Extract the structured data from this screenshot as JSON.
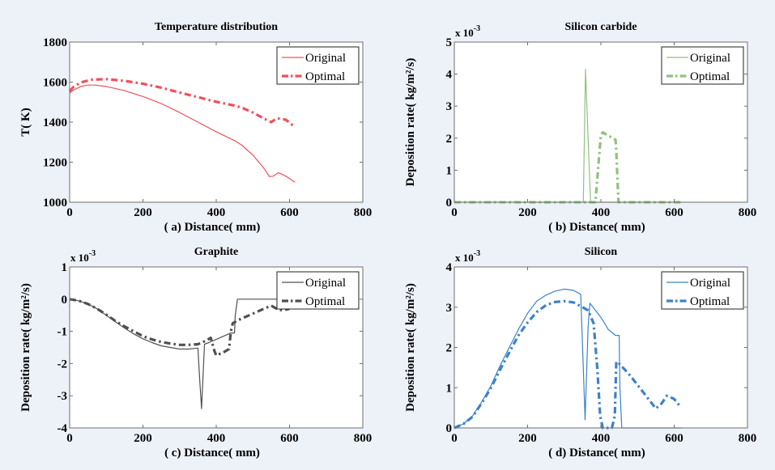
{
  "chart_data": [
    {
      "id": "a",
      "type": "line",
      "title": "Temperature distribution",
      "xlabel": "( a)  Distance(  mm)",
      "ylabel": "T(  K)",
      "xlim": [
        0,
        800
      ],
      "ylim": [
        1000,
        1800
      ],
      "xticks": [
        "0",
        "200",
        "400",
        "600",
        "800"
      ],
      "yticks": [
        "1000",
        "1200",
        "1400",
        "1600",
        "1800"
      ],
      "ytick_values": [
        1000,
        1200,
        1400,
        1600,
        1800
      ],
      "multiplier": "",
      "grid": false,
      "legend_position": "top-right",
      "color": "#f0505a",
      "series": [
        {
          "name": "Original",
          "style": "solid",
          "x": [
            0,
            10,
            30,
            50,
            70,
            100,
            150,
            200,
            250,
            300,
            350,
            400,
            450,
            470,
            500,
            530,
            545,
            555,
            570,
            590,
            615
          ],
          "y": [
            1545,
            1560,
            1578,
            1585,
            1585,
            1578,
            1557,
            1528,
            1493,
            1448,
            1400,
            1352,
            1308,
            1285,
            1235,
            1170,
            1128,
            1130,
            1148,
            1130,
            1100
          ]
        },
        {
          "name": "Optimal",
          "style": "dashdot",
          "x": [
            0,
            10,
            30,
            60,
            100,
            150,
            200,
            250,
            300,
            350,
            400,
            450,
            470,
            500,
            530,
            550,
            565,
            590,
            615
          ],
          "y": [
            1555,
            1575,
            1598,
            1612,
            1615,
            1606,
            1592,
            1572,
            1548,
            1525,
            1502,
            1483,
            1472,
            1448,
            1418,
            1400,
            1420,
            1412,
            1375
          ]
        }
      ]
    },
    {
      "id": "b",
      "type": "line",
      "title": "Silicon carbide",
      "xlabel": "( b)  Distance(  mm)",
      "ylabel": "Deposition rate(  kg/m²/s)",
      "xlim": [
        0,
        800
      ],
      "ylim": [
        0,
        5
      ],
      "xticks": [
        "0",
        "200",
        "400",
        "600",
        "800"
      ],
      "yticks": [
        "0",
        "1",
        "2",
        "3",
        "4",
        "5"
      ],
      "ytick_values": [
        0,
        1,
        2,
        3,
        4,
        5
      ],
      "multiplier": "x 10^-3",
      "grid": false,
      "legend_position": "top-right",
      "color": "#90c080",
      "series": [
        {
          "name": "Original",
          "style": "solid",
          "x": [
            0,
            345,
            352,
            358,
            365,
            372,
            620
          ],
          "y": [
            0,
            0,
            0,
            4.15,
            2.0,
            0,
            0
          ]
        },
        {
          "name": "Optimal",
          "style": "dashdot",
          "x": [
            0,
            385,
            392,
            400,
            405,
            440,
            442,
            448,
            620
          ],
          "y": [
            0,
            0,
            1.0,
            2.1,
            2.18,
            1.95,
            1.6,
            0,
            0
          ]
        }
      ]
    },
    {
      "id": "c",
      "type": "line",
      "title": "Graphite",
      "xlabel": "( c)  Distance(  mm)",
      "ylabel": "Deposition rate(  kg/m²/s)",
      "xlim": [
        0,
        800
      ],
      "ylim": [
        -4,
        1
      ],
      "xticks": [
        "0",
        "200",
        "400",
        "600",
        "800"
      ],
      "yticks": [
        "-4",
        "-3",
        "-2",
        "-1",
        "0",
        "1"
      ],
      "ytick_values": [
        -4,
        -3,
        -2,
        -1,
        0,
        1
      ],
      "multiplier": "x 10^-3",
      "grid": false,
      "legend_position": "top-right",
      "color": "#505050",
      "series": [
        {
          "name": "Original",
          "style": "solid",
          "x": [
            0,
            25,
            50,
            75,
            100,
            125,
            150,
            175,
            200,
            225,
            250,
            275,
            300,
            325,
            350,
            355,
            360,
            368,
            380,
            400,
            420,
            440,
            450,
            452,
            458,
            520,
            560,
            600,
            620
          ],
          "y": [
            0,
            -0.05,
            -0.15,
            -0.3,
            -0.5,
            -0.7,
            -0.9,
            -1.08,
            -1.23,
            -1.35,
            -1.45,
            -1.5,
            -1.55,
            -1.55,
            -1.52,
            -2.5,
            -3.4,
            -1.4,
            -1.35,
            -1.25,
            -1.15,
            -1.05,
            -1.05,
            -0.5,
            0,
            0,
            0,
            0,
            0
          ]
        },
        {
          "name": "Optimal",
          "style": "dashdot",
          "x": [
            0,
            25,
            50,
            75,
            100,
            125,
            150,
            175,
            200,
            225,
            250,
            275,
            300,
            325,
            350,
            370,
            385,
            395,
            400,
            420,
            435,
            440,
            445,
            460,
            500,
            530,
            550,
            565,
            580,
            600
          ],
          "y": [
            0,
            -0.05,
            -0.15,
            -0.3,
            -0.48,
            -0.68,
            -0.85,
            -1.0,
            -1.15,
            -1.25,
            -1.33,
            -1.38,
            -1.42,
            -1.42,
            -1.4,
            -1.3,
            -1.2,
            -1.6,
            -1.75,
            -1.65,
            -1.55,
            -1.0,
            -0.75,
            -0.65,
            -0.45,
            -0.3,
            -0.2,
            -0.3,
            -0.35,
            -0.3
          ]
        }
      ]
    },
    {
      "id": "d",
      "type": "line",
      "title": "Silicon",
      "xlabel": "( d)  Distance(  mm)",
      "ylabel": "Deposition rate(  kg/m²/s)",
      "xlim": [
        0,
        800
      ],
      "ylim": [
        0,
        4
      ],
      "xticks": [
        "0",
        "200",
        "400",
        "600",
        "800"
      ],
      "yticks": [
        "0",
        "1",
        "2",
        "3",
        "4"
      ],
      "ytick_values": [
        0,
        1,
        2,
        3,
        4
      ],
      "multiplier": "x 10^-3",
      "grid": false,
      "legend_position": "top-right",
      "color": "#3c82c8",
      "series": [
        {
          "name": "Original",
          "style": "solid",
          "x": [
            0,
            25,
            50,
            75,
            100,
            125,
            150,
            175,
            200,
            225,
            250,
            275,
            300,
            325,
            345,
            350,
            357,
            365,
            370,
            400,
            420,
            440,
            450,
            452,
            457,
            620
          ],
          "y": [
            0,
            0.1,
            0.3,
            0.65,
            1.05,
            1.55,
            2.0,
            2.45,
            2.85,
            3.15,
            3.3,
            3.4,
            3.45,
            3.42,
            3.32,
            2.0,
            0.2,
            2.5,
            3.1,
            2.75,
            2.45,
            2.3,
            2.3,
            1.0,
            0,
            0
          ]
        },
        {
          "name": "Optimal",
          "style": "dashdot",
          "x": [
            0,
            25,
            50,
            75,
            100,
            125,
            150,
            175,
            200,
            225,
            250,
            275,
            300,
            325,
            350,
            365,
            380,
            390,
            398,
            405,
            430,
            438,
            442,
            450,
            480,
            510,
            550,
            565,
            580,
            600,
            615
          ],
          "y": [
            0,
            0.1,
            0.28,
            0.62,
            1.0,
            1.45,
            1.88,
            2.3,
            2.62,
            2.88,
            3.05,
            3.13,
            3.15,
            3.12,
            3.0,
            2.92,
            2.6,
            1.5,
            0.3,
            0,
            0,
            0.3,
            1.65,
            1.6,
            1.3,
            0.95,
            0.48,
            0.6,
            0.8,
            0.72,
            0.55
          ]
        }
      ]
    }
  ]
}
